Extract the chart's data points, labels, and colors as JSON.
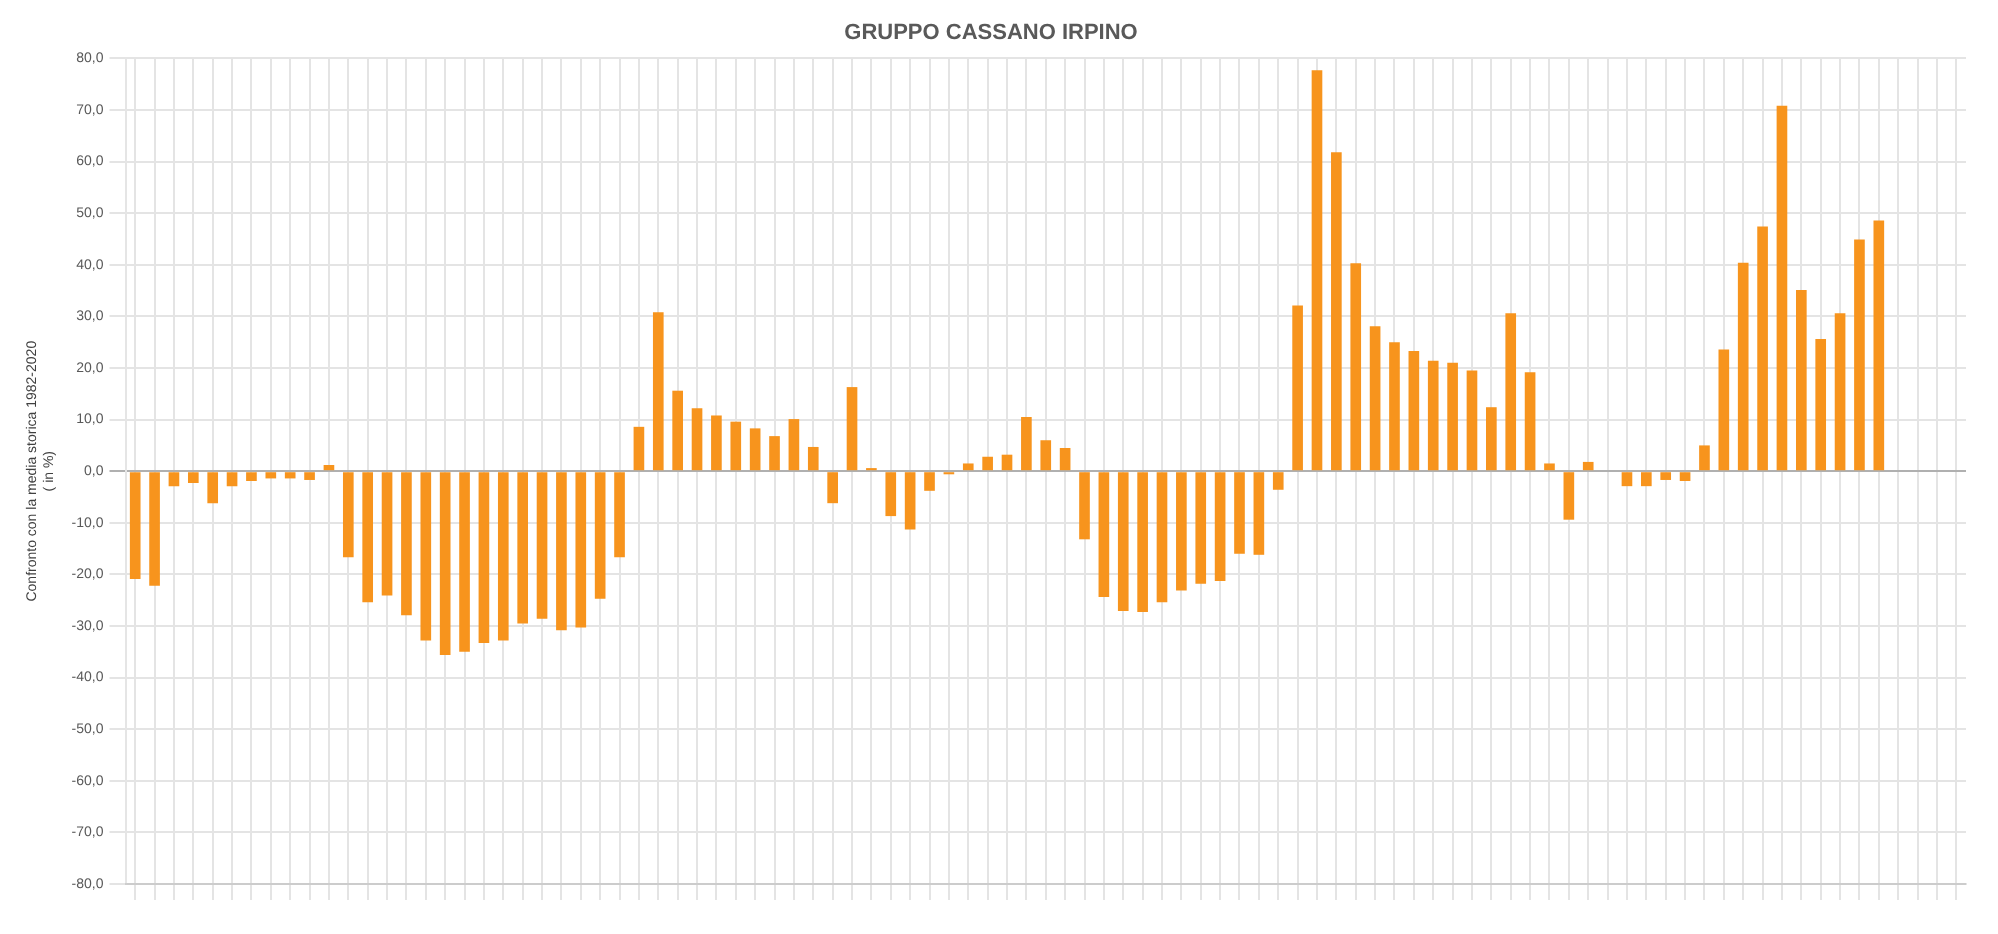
{
  "chart_data": {
    "type": "bar",
    "title": "GRUPPO CASSANO IRPINO",
    "ylabel": "Confronto con la media storica 1982-2020\n( in %)",
    "categories": [
      null,
      null,
      null,
      null,
      null,
      null,
      null,
      null,
      null,
      null,
      null,
      null,
      null,
      null,
      null,
      null,
      null,
      null,
      null,
      null,
      null,
      null,
      null,
      null,
      null,
      null,
      null,
      null,
      null,
      null,
      null,
      null,
      null,
      null,
      null,
      null,
      null,
      null,
      null,
      null,
      null,
      null,
      null,
      null,
      null,
      null,
      null,
      null,
      null,
      null,
      null,
      null,
      null,
      null,
      null,
      null,
      null,
      null,
      null,
      null,
      null,
      null,
      null,
      null,
      null,
      null,
      null,
      null,
      null,
      null,
      null,
      null,
      null,
      null,
      null,
      null,
      null,
      null,
      null,
      null,
      null,
      null,
      null,
      null,
      null,
      null,
      null,
      null,
      null,
      null,
      null,
      null,
      null,
      null,
      null
    ],
    "values": [
      -20.9,
      -22.2,
      -2.9,
      -2.3,
      -6.2,
      -2.9,
      -1.9,
      -1.4,
      -1.4,
      -1.7,
      1.2,
      -16.7,
      -25.4,
      -24.1,
      -27.9,
      -32.8,
      -35.6,
      -35.0,
      -33.3,
      -32.8,
      -29.5,
      -28.6,
      -30.8,
      -30.3,
      -24.7,
      -16.7,
      8.6,
      30.8,
      15.6,
      12.2,
      10.8,
      9.6,
      8.3,
      6.8,
      10.1,
      4.7,
      -6.2,
      16.3,
      0.6,
      -8.7,
      -11.3,
      -3.8,
      -0.6,
      1.5,
      2.8,
      3.2,
      10.5,
      6.0,
      4.5,
      -13.2,
      -24.4,
      -27.1,
      -27.3,
      -25.4,
      -23.1,
      -21.8,
      -21.3,
      -16.0,
      -16.2,
      -3.6,
      32.1,
      77.7,
      61.8,
      40.3,
      28.1,
      25.0,
      23.3,
      21.4,
      21.0,
      19.5,
      12.4,
      30.6,
      19.2,
      1.5,
      -9.4,
      1.8,
      0,
      -2.9,
      -2.9,
      -1.7,
      -1.9,
      5.0,
      23.6,
      40.4,
      47.4,
      70.8,
      35.1,
      25.6,
      30.6,
      44.9,
      48.6,
      null,
      null,
      null,
      null
    ],
    "color": "#f7941d",
    "ylim": [
      -80,
      80
    ],
    "yticks": [
      {
        "value": -80,
        "label": "-80,0"
      },
      {
        "value": -70,
        "label": "-70,0"
      },
      {
        "value": -60,
        "label": "-60,0"
      },
      {
        "value": -50,
        "label": "-50,0"
      },
      {
        "value": -40,
        "label": "-40,0"
      },
      {
        "value": -30,
        "label": "-30,0"
      },
      {
        "value": -20,
        "label": "-20,0"
      },
      {
        "value": -10,
        "label": "-10,0"
      },
      {
        "value": 0,
        "label": "0,0"
      },
      {
        "value": 10,
        "label": "10,0"
      },
      {
        "value": 20,
        "label": "20,0"
      },
      {
        "value": 30,
        "label": "30,0"
      },
      {
        "value": 40,
        "label": "40,0"
      },
      {
        "value": 50,
        "label": "50,0"
      },
      {
        "value": 60,
        "label": "60,0"
      },
      {
        "value": 70,
        "label": "70,0"
      },
      {
        "value": 80,
        "label": "80,0"
      }
    ],
    "grid": true
  }
}
